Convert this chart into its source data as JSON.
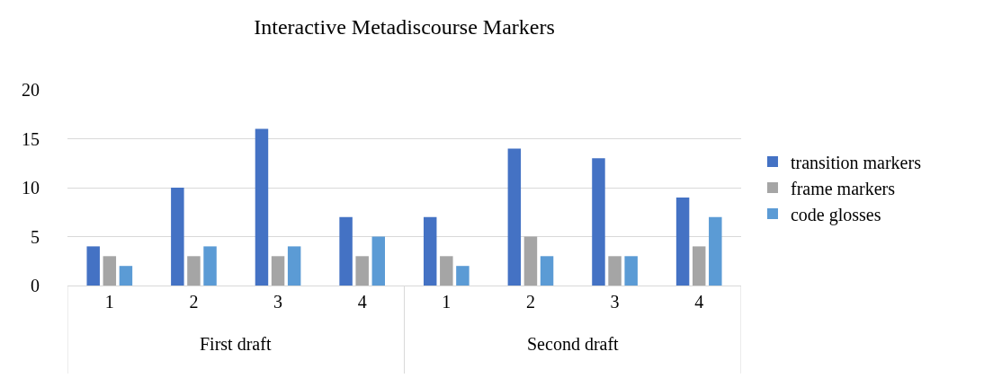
{
  "chart_data": {
    "type": "bar",
    "title": "Interactive Metadiscourse Markers",
    "categories": [
      "1",
      "2",
      "3",
      "4",
      "1",
      "2",
      "3",
      "4"
    ],
    "series": [
      {
        "name": "transition markers",
        "color": "#4472c4",
        "values": [
          4,
          10,
          16,
          7,
          7,
          14,
          13,
          9
        ]
      },
      {
        "name": "frame markers",
        "color": "#a5a5a5",
        "values": [
          3,
          3,
          3,
          3,
          3,
          5,
          3,
          4
        ]
      },
      {
        "name": "code glosses",
        "color": "#5b9bd5",
        "values": [
          2,
          4,
          4,
          5,
          2,
          3,
          3,
          7
        ]
      }
    ],
    "annotations": [
      "First draft",
      "Second draft"
    ],
    "ylim": [
      0,
      20
    ],
    "yticks": [
      0,
      5,
      10,
      15,
      20
    ],
    "grid": "y",
    "legend": "right"
  }
}
